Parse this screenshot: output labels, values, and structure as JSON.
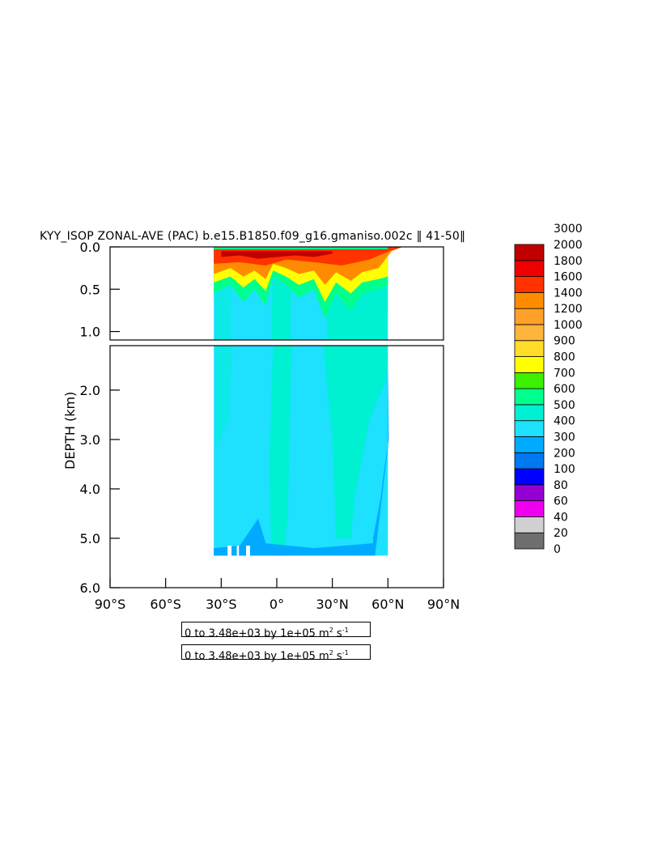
{
  "title": "KYY_ISOP ZONAL-AVE (PAC) b.e15.B1850.f09_g16.gmaniso.002c ‖ 41-50‖",
  "info_boxes": [
    {
      "prefix": "0 to 3.48e+03 by 1e+05 m",
      "sup1": "2",
      "mid": " s",
      "sup2": "-1"
    },
    {
      "prefix": "0 to 3.48e+03 by 1e+05 m",
      "sup1": "2",
      "mid": " s",
      "sup2": "-1"
    }
  ],
  "chart_data": {
    "type": "heatmap",
    "title": "KYY_ISOP ZONAL-AVE (PAC) b.e15.B1850.f09_g16.gmaniso.002c ‖ 41-50‖",
    "xlabel": "",
    "ylabel": "DEPTH (km)",
    "xlim": [
      -90,
      90
    ],
    "ylim": [
      0,
      6
    ],
    "y_break_km": 1.1,
    "x_ticks": [
      {
        "value": -90,
        "label": "90°S"
      },
      {
        "value": -60,
        "label": "60°S"
      },
      {
        "value": -30,
        "label": "30°S"
      },
      {
        "value": 0,
        "label": "0°"
      },
      {
        "value": 30,
        "label": "30°N"
      },
      {
        "value": 60,
        "label": "60°N"
      },
      {
        "value": 90,
        "label": "90°N"
      }
    ],
    "y_ticks_upper": [
      {
        "value": 0.0,
        "label": "0.0"
      },
      {
        "value": 0.5,
        "label": "0.5"
      },
      {
        "value": 1.0,
        "label": "1.0"
      }
    ],
    "y_ticks_lower": [
      {
        "value": 2.0,
        "label": "2.0"
      },
      {
        "value": 3.0,
        "label": "3.0"
      },
      {
        "value": 4.0,
        "label": "4.0"
      },
      {
        "value": 5.0,
        "label": "5.0"
      },
      {
        "value": 6.0,
        "label": "6.0"
      }
    ],
    "colorbar": {
      "levels": [
        "0",
        "20",
        "40",
        "60",
        "80",
        "100",
        "200",
        "300",
        "400",
        "500",
        "600",
        "700",
        "800",
        "900",
        "1000",
        "1200",
        "1400",
        "1600",
        "1800",
        "2000",
        "3000"
      ],
      "colors": [
        "#6e6e6e",
        "#d0d0d0",
        "#ee00ee",
        "#9400d3",
        "#0000ff",
        "#0078f0",
        "#00aaff",
        "#1ee0ff",
        "#00f0d2",
        "#00ff8c",
        "#3cf000",
        "#ffff00",
        "#ffdc28",
        "#ffb43c",
        "#ffa028",
        "#ff8c00",
        "#ff3200",
        "#ee0000",
        "#c00000"
      ]
    },
    "data_extent": {
      "lat_min": -34,
      "lat_max": 60,
      "bottom_depth_km": 5.35
    },
    "regions": [
      {
        "name": "deep-background",
        "value": 300
      },
      {
        "name": "equatorial-band",
        "value": 400
      },
      {
        "name": "north-band",
        "value": 400
      },
      {
        "name": "thermocline-layer",
        "value": 500
      },
      {
        "name": "surface-layer",
        "value": 1200
      },
      {
        "name": "surface-max",
        "value": 2000
      },
      {
        "name": "bottom-layer",
        "value": 200
      }
    ]
  }
}
